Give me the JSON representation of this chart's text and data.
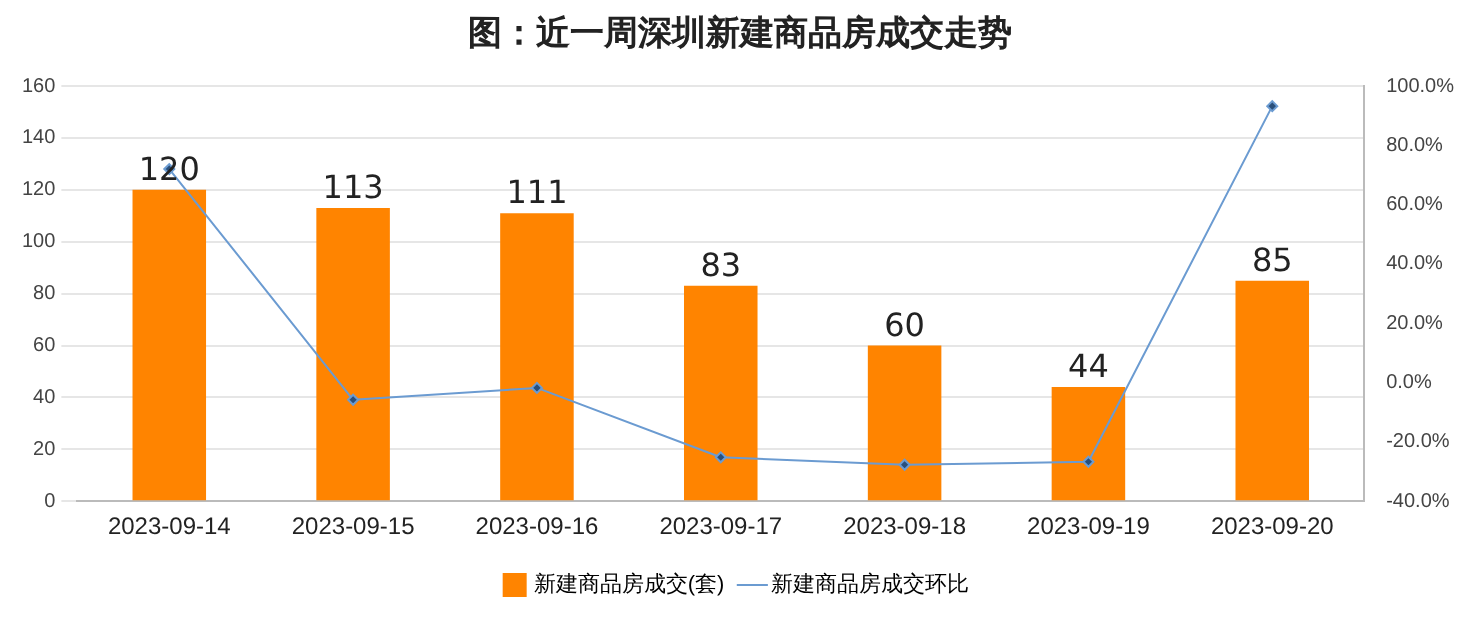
{
  "chart_data": {
    "type": "bar",
    "title": "图：近一周深圳新建商品房成交走势",
    "categories": [
      "2023-09-14",
      "2023-09-15",
      "2023-09-16",
      "2023-09-17",
      "2023-09-18",
      "2023-09-19",
      "2023-09-20"
    ],
    "series": [
      {
        "name": "新建商品房成交(套)",
        "color": "#ff8400",
        "values": [
          120,
          113,
          111,
          83,
          60,
          44,
          85
        ],
        "value_labels": [
          "120",
          "113",
          "111",
          "83",
          "60",
          "44",
          "85"
        ]
      },
      {
        "name": "新建商品房成交环比",
        "type": "line",
        "axis": "y2",
        "color": "#6b9bd1",
        "values": [
          72,
          -5.8,
          -1.8,
          -25.2,
          -27.7,
          -26.7,
          93.2
        ],
        "marker": "diamond"
      }
    ],
    "ylim": [
      0,
      160
    ],
    "yticks": [
      0,
      20,
      40,
      60,
      80,
      100,
      120,
      140,
      160
    ],
    "y2lim": [
      -40,
      100
    ],
    "y2ticks": [
      {
        "value": -40,
        "label": "-40.0%"
      },
      {
        "value": -20,
        "label": "-20.0%"
      },
      {
        "value": 0,
        "label": "0.0%"
      },
      {
        "value": 20,
        "label": "20.0%"
      },
      {
        "value": 40,
        "label": "40.0%"
      },
      {
        "value": 60,
        "label": "60.0%"
      },
      {
        "value": 80,
        "label": "80.0%"
      },
      {
        "value": 100,
        "label": "100.0%"
      }
    ],
    "grid": "y",
    "legend": "bottom"
  }
}
